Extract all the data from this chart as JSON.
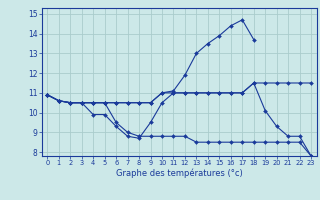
{
  "title": "",
  "xlabel": "Graphe des températures (°c)",
  "bg_color": "#cce8e8",
  "grid_color": "#aacccc",
  "line_color": "#1a3a9a",
  "xlim": [
    -0.5,
    23.5
  ],
  "ylim": [
    7.8,
    15.3
  ],
  "xticks": [
    0,
    1,
    2,
    3,
    4,
    5,
    6,
    7,
    8,
    9,
    10,
    11,
    12,
    13,
    14,
    15,
    16,
    17,
    18,
    19,
    20,
    21,
    22,
    23
  ],
  "yticks": [
    8,
    9,
    10,
    11,
    12,
    13,
    14,
    15
  ],
  "series": [
    {
      "x": [
        0,
        1,
        2,
        3,
        4,
        5,
        6,
        7,
        8,
        9,
        10,
        11,
        12,
        13,
        14,
        15,
        16,
        17,
        18
      ],
      "y": [
        10.9,
        10.6,
        10.5,
        10.5,
        10.5,
        10.5,
        10.5,
        10.5,
        10.5,
        10.5,
        11.0,
        11.1,
        11.9,
        13.0,
        13.5,
        13.9,
        14.4,
        14.7,
        13.7
      ]
    },
    {
      "x": [
        0,
        1,
        2,
        3,
        4,
        5,
        6,
        7,
        8,
        9,
        10,
        11,
        12,
        13,
        14,
        15,
        16,
        17,
        18,
        19,
        20,
        21,
        22,
        23
      ],
      "y": [
        10.9,
        10.6,
        10.5,
        10.5,
        9.9,
        9.9,
        9.3,
        8.8,
        8.7,
        9.5,
        10.5,
        11.0,
        11.0,
        11.0,
        11.0,
        11.0,
        11.0,
        11.0,
        11.5,
        10.1,
        9.3,
        8.8,
        8.8,
        7.8
      ]
    },
    {
      "x": [
        0,
        1,
        2,
        3,
        4,
        5,
        6,
        7,
        8,
        9,
        10,
        11,
        12,
        13,
        14,
        15,
        16,
        17,
        18,
        19,
        20,
        21,
        22,
        23
      ],
      "y": [
        10.9,
        10.6,
        10.5,
        10.5,
        10.5,
        10.5,
        10.5,
        10.5,
        10.5,
        10.5,
        11.0,
        11.0,
        11.0,
        11.0,
        11.0,
        11.0,
        11.0,
        11.0,
        11.5,
        11.5,
        11.5,
        11.5,
        11.5,
        11.5
      ]
    },
    {
      "x": [
        0,
        1,
        2,
        3,
        4,
        5,
        6,
        7,
        8,
        9,
        10,
        11,
        12,
        13,
        14,
        15,
        16,
        17,
        18,
        19,
        20,
        21,
        22,
        23
      ],
      "y": [
        10.9,
        10.6,
        10.5,
        10.5,
        10.5,
        10.5,
        9.5,
        9.0,
        8.8,
        8.8,
        8.8,
        8.8,
        8.8,
        8.5,
        8.5,
        8.5,
        8.5,
        8.5,
        8.5,
        8.5,
        8.5,
        8.5,
        8.5,
        7.8
      ]
    }
  ]
}
